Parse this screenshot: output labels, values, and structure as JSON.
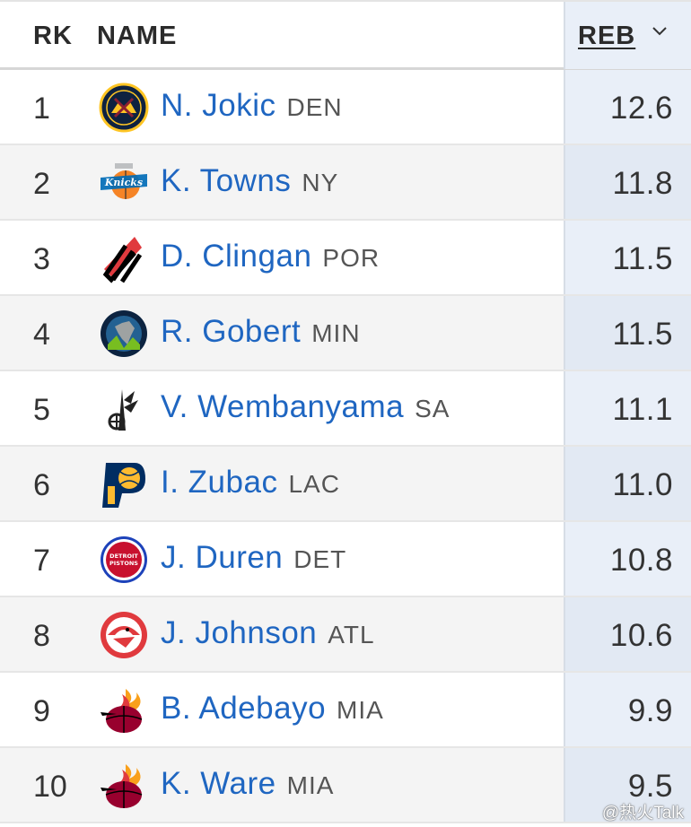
{
  "header": {
    "rank": "RK",
    "name": "NAME",
    "reb": "REB"
  },
  "rows": [
    {
      "rank": "1",
      "player": "N. Jokic",
      "team": "DEN",
      "reb": "12.6",
      "logo_icon": "nuggets-logo-icon"
    },
    {
      "rank": "2",
      "player": "K. Towns",
      "team": "NY",
      "reb": "11.8",
      "logo_icon": "knicks-logo-icon"
    },
    {
      "rank": "3",
      "player": "D. Clingan",
      "team": "POR",
      "reb": "11.5",
      "logo_icon": "trail-blazers-logo-icon"
    },
    {
      "rank": "4",
      "player": "R. Gobert",
      "team": "MIN",
      "reb": "11.5",
      "logo_icon": "timberwolves-logo-icon"
    },
    {
      "rank": "5",
      "player": "V. Wembanyama",
      "team": "SA",
      "reb": "11.1",
      "logo_icon": "spurs-logo-icon"
    },
    {
      "rank": "6",
      "player": "I. Zubac",
      "team": "LAC",
      "reb": "11.0",
      "logo_icon": "pacers-logo-icon"
    },
    {
      "rank": "7",
      "player": "J. Duren",
      "team": "DET",
      "reb": "10.8",
      "logo_icon": "pistons-logo-icon"
    },
    {
      "rank": "8",
      "player": "J. Johnson",
      "team": "ATL",
      "reb": "10.6",
      "logo_icon": "hawks-logo-icon"
    },
    {
      "rank": "9",
      "player": "B. Adebayo",
      "team": "MIA",
      "reb": "9.9",
      "logo_icon": "heat-logo-icon"
    },
    {
      "rank": "10",
      "player": "K. Ware",
      "team": "MIA",
      "reb": "9.5",
      "logo_icon": "heat-logo-icon"
    }
  ],
  "watermark": "@热火Talk",
  "colors": {
    "link": "#1f66c1",
    "sorted_column_bg": "#e9eff8",
    "row_alt_bg": "#f4f4f4"
  }
}
